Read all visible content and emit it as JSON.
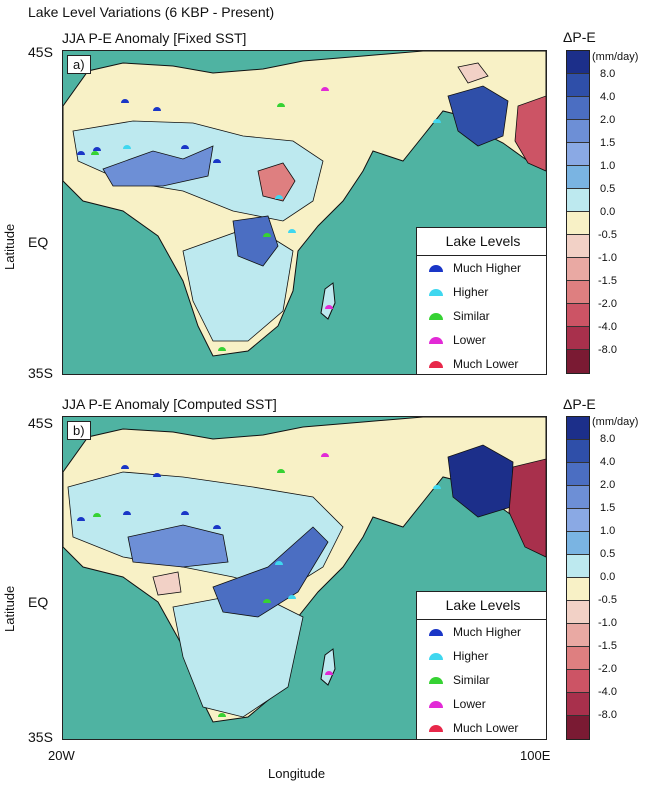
{
  "title": "Lake Level Variations (6 KBP - Present)",
  "axes": {
    "ylabel": "Latitude",
    "xlabel": "Longitude",
    "lat_ticks": [
      "45S",
      "EQ",
      "35S"
    ],
    "lon_ticks": [
      "20W",
      "100E"
    ]
  },
  "colorbar": {
    "title": "ΔP-E",
    "unit": "(mm/day)",
    "labels": [
      "8.0",
      "4.0",
      "2.0",
      "1.5",
      "1.0",
      "0.5",
      "0.0",
      "-0.5",
      "-1.0",
      "-1.5",
      "-2.0",
      "-4.0",
      "-8.0"
    ],
    "colors": [
      "#1c2f8a",
      "#2f4fa9",
      "#4b6ec2",
      "#6d8fd6",
      "#8aa9e4",
      "#7ab4e2",
      "#bde9ef",
      "#f8f1c6",
      "#f2d1c6",
      "#e9a9a3",
      "#de7f80",
      "#cc5465",
      "#a8304c",
      "#7a1a33"
    ]
  },
  "legend": {
    "title": "Lake Levels",
    "items": [
      {
        "label": "Much Higher",
        "color": "#1a36c7"
      },
      {
        "label": "Higher",
        "color": "#3fd7ef"
      },
      {
        "label": "Similar",
        "color": "#36d233"
      },
      {
        "label": "Lower",
        "color": "#e22ad6"
      },
      {
        "label": "Much Lower",
        "color": "#e8284a"
      }
    ]
  },
  "panels": [
    {
      "tag": "a)",
      "title": "JJA P-E Anomaly  [Fixed SST]"
    },
    {
      "tag": "b)",
      "title": "JJA P-E Anomaly [Computed SST]"
    }
  ],
  "colors": {
    "ocean": "#4fb3a2",
    "land_base": "#f8f1c6",
    "coast": "#111111"
  }
}
